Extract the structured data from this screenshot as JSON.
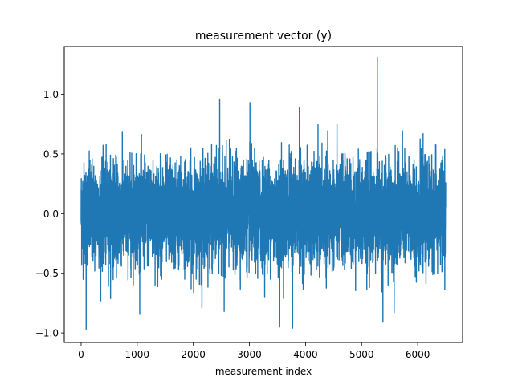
{
  "chart_data": {
    "type": "line",
    "title": "measurement vector (y)",
    "xlabel": "measurement index",
    "ylabel": "",
    "xlim": [
      -300,
      6800
    ],
    "ylim": [
      -1.08,
      1.4
    ],
    "xticks": [
      0,
      1000,
      2000,
      3000,
      4000,
      5000,
      6000
    ],
    "yticks": [
      -1.0,
      -0.5,
      0.0,
      0.5,
      1.0
    ],
    "xtick_labels": [
      "0",
      "1000",
      "2000",
      "3000",
      "4000",
      "5000",
      "6000"
    ],
    "ytick_labels": [
      "−1.0",
      "−0.5",
      "0.0",
      "0.5",
      "1.0"
    ],
    "grid": false,
    "series": [
      {
        "color": "#1f77b4",
        "n_points": 6500,
        "x_range": [
          0,
          6499
        ],
        "noise_std": 0.21,
        "notable_points": [
          {
            "x": 5280,
            "y": 1.31
          },
          {
            "x": 2470,
            "y": 0.96
          },
          {
            "x": 3010,
            "y": 0.93
          },
          {
            "x": 3890,
            "y": 0.89
          },
          {
            "x": 90,
            "y": -0.97
          },
          {
            "x": 3540,
            "y": -0.95
          },
          {
            "x": 3770,
            "y": -0.96
          },
          {
            "x": 5380,
            "y": -0.91
          },
          {
            "x": 2550,
            "y": -0.82
          },
          {
            "x": 5580,
            "y": -0.83
          }
        ]
      }
    ]
  }
}
